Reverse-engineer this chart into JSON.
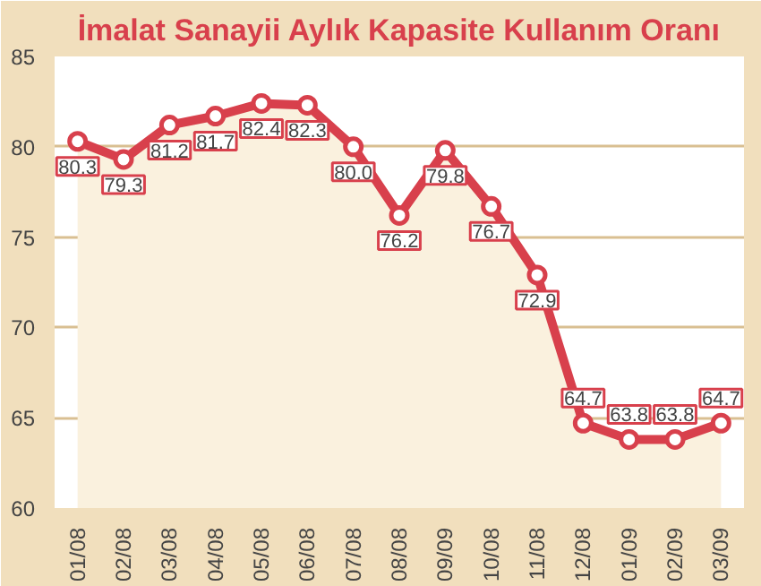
{
  "chart_data": {
    "type": "area",
    "title": "İmalat Sanayii Aylık Kapasite Kullanım Oranı",
    "categories": [
      "01/08",
      "02/08",
      "03/08",
      "04/08",
      "05/08",
      "06/08",
      "07/08",
      "08/08",
      "09/09",
      "10/08",
      "11/08",
      "12/08",
      "01/09",
      "02/09",
      "03/09"
    ],
    "series": [
      {
        "color": "#d8404c",
        "values": [
          80.3,
          79.3,
          81.2,
          81.7,
          82.4,
          82.3,
          80.0,
          76.2,
          79.8,
          76.7,
          72.9,
          64.7,
          63.8,
          63.8,
          64.7
        ],
        "value_labels": [
          "80.3",
          "79.3",
          "81.2",
          "81.7",
          "82.4",
          "82.3",
          "80.0",
          "76.2",
          "79.8",
          "76.7",
          "72.9",
          "64.7",
          "63.8",
          "63.8",
          "64.7"
        ]
      }
    ],
    "ylim": [
      60,
      85
    ],
    "yticks": [
      60,
      65,
      70,
      75,
      80,
      85
    ],
    "grid": "y",
    "marker": "circle",
    "line_style": "solid"
  }
}
